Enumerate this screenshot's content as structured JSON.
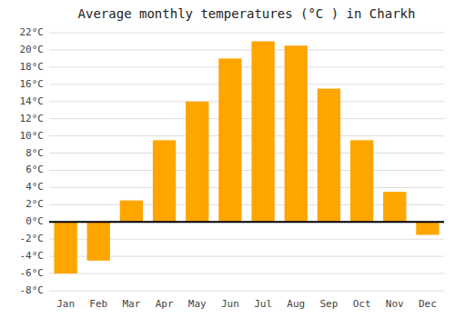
{
  "chart_data": {
    "type": "bar",
    "title": "Average monthly temperatures (°C ) in Charkh",
    "categories": [
      "Jan",
      "Feb",
      "Mar",
      "Apr",
      "May",
      "Jun",
      "Jul",
      "Aug",
      "Sep",
      "Oct",
      "Nov",
      "Dec"
    ],
    "values": [
      -6,
      -4.5,
      2.5,
      9.5,
      14,
      19,
      21,
      20.5,
      15.5,
      9.5,
      3.5,
      -1.5
    ],
    "color": "#FFA500",
    "ylim": [
      -8,
      22
    ],
    "yticks": [
      {
        "value": -8,
        "label": "-8°C"
      },
      {
        "value": -6,
        "label": "-6°C"
      },
      {
        "value": -4,
        "label": "-4°C"
      },
      {
        "value": -2,
        "label": "-2°C"
      },
      {
        "value": 0,
        "label": "0°C"
      },
      {
        "value": 2,
        "label": "2°C"
      },
      {
        "value": 4,
        "label": "4°C"
      },
      {
        "value": 6,
        "label": "6°C"
      },
      {
        "value": 8,
        "label": "8°C"
      },
      {
        "value": 10,
        "label": "10°C"
      },
      {
        "value": 12,
        "label": "12°C"
      },
      {
        "value": 14,
        "label": "14°C"
      },
      {
        "value": 16,
        "label": "16°C"
      },
      {
        "value": 18,
        "label": "18°C"
      },
      {
        "value": 20,
        "label": "20°C"
      },
      {
        "value": 22,
        "label": "22°C"
      }
    ],
    "grid": true
  }
}
